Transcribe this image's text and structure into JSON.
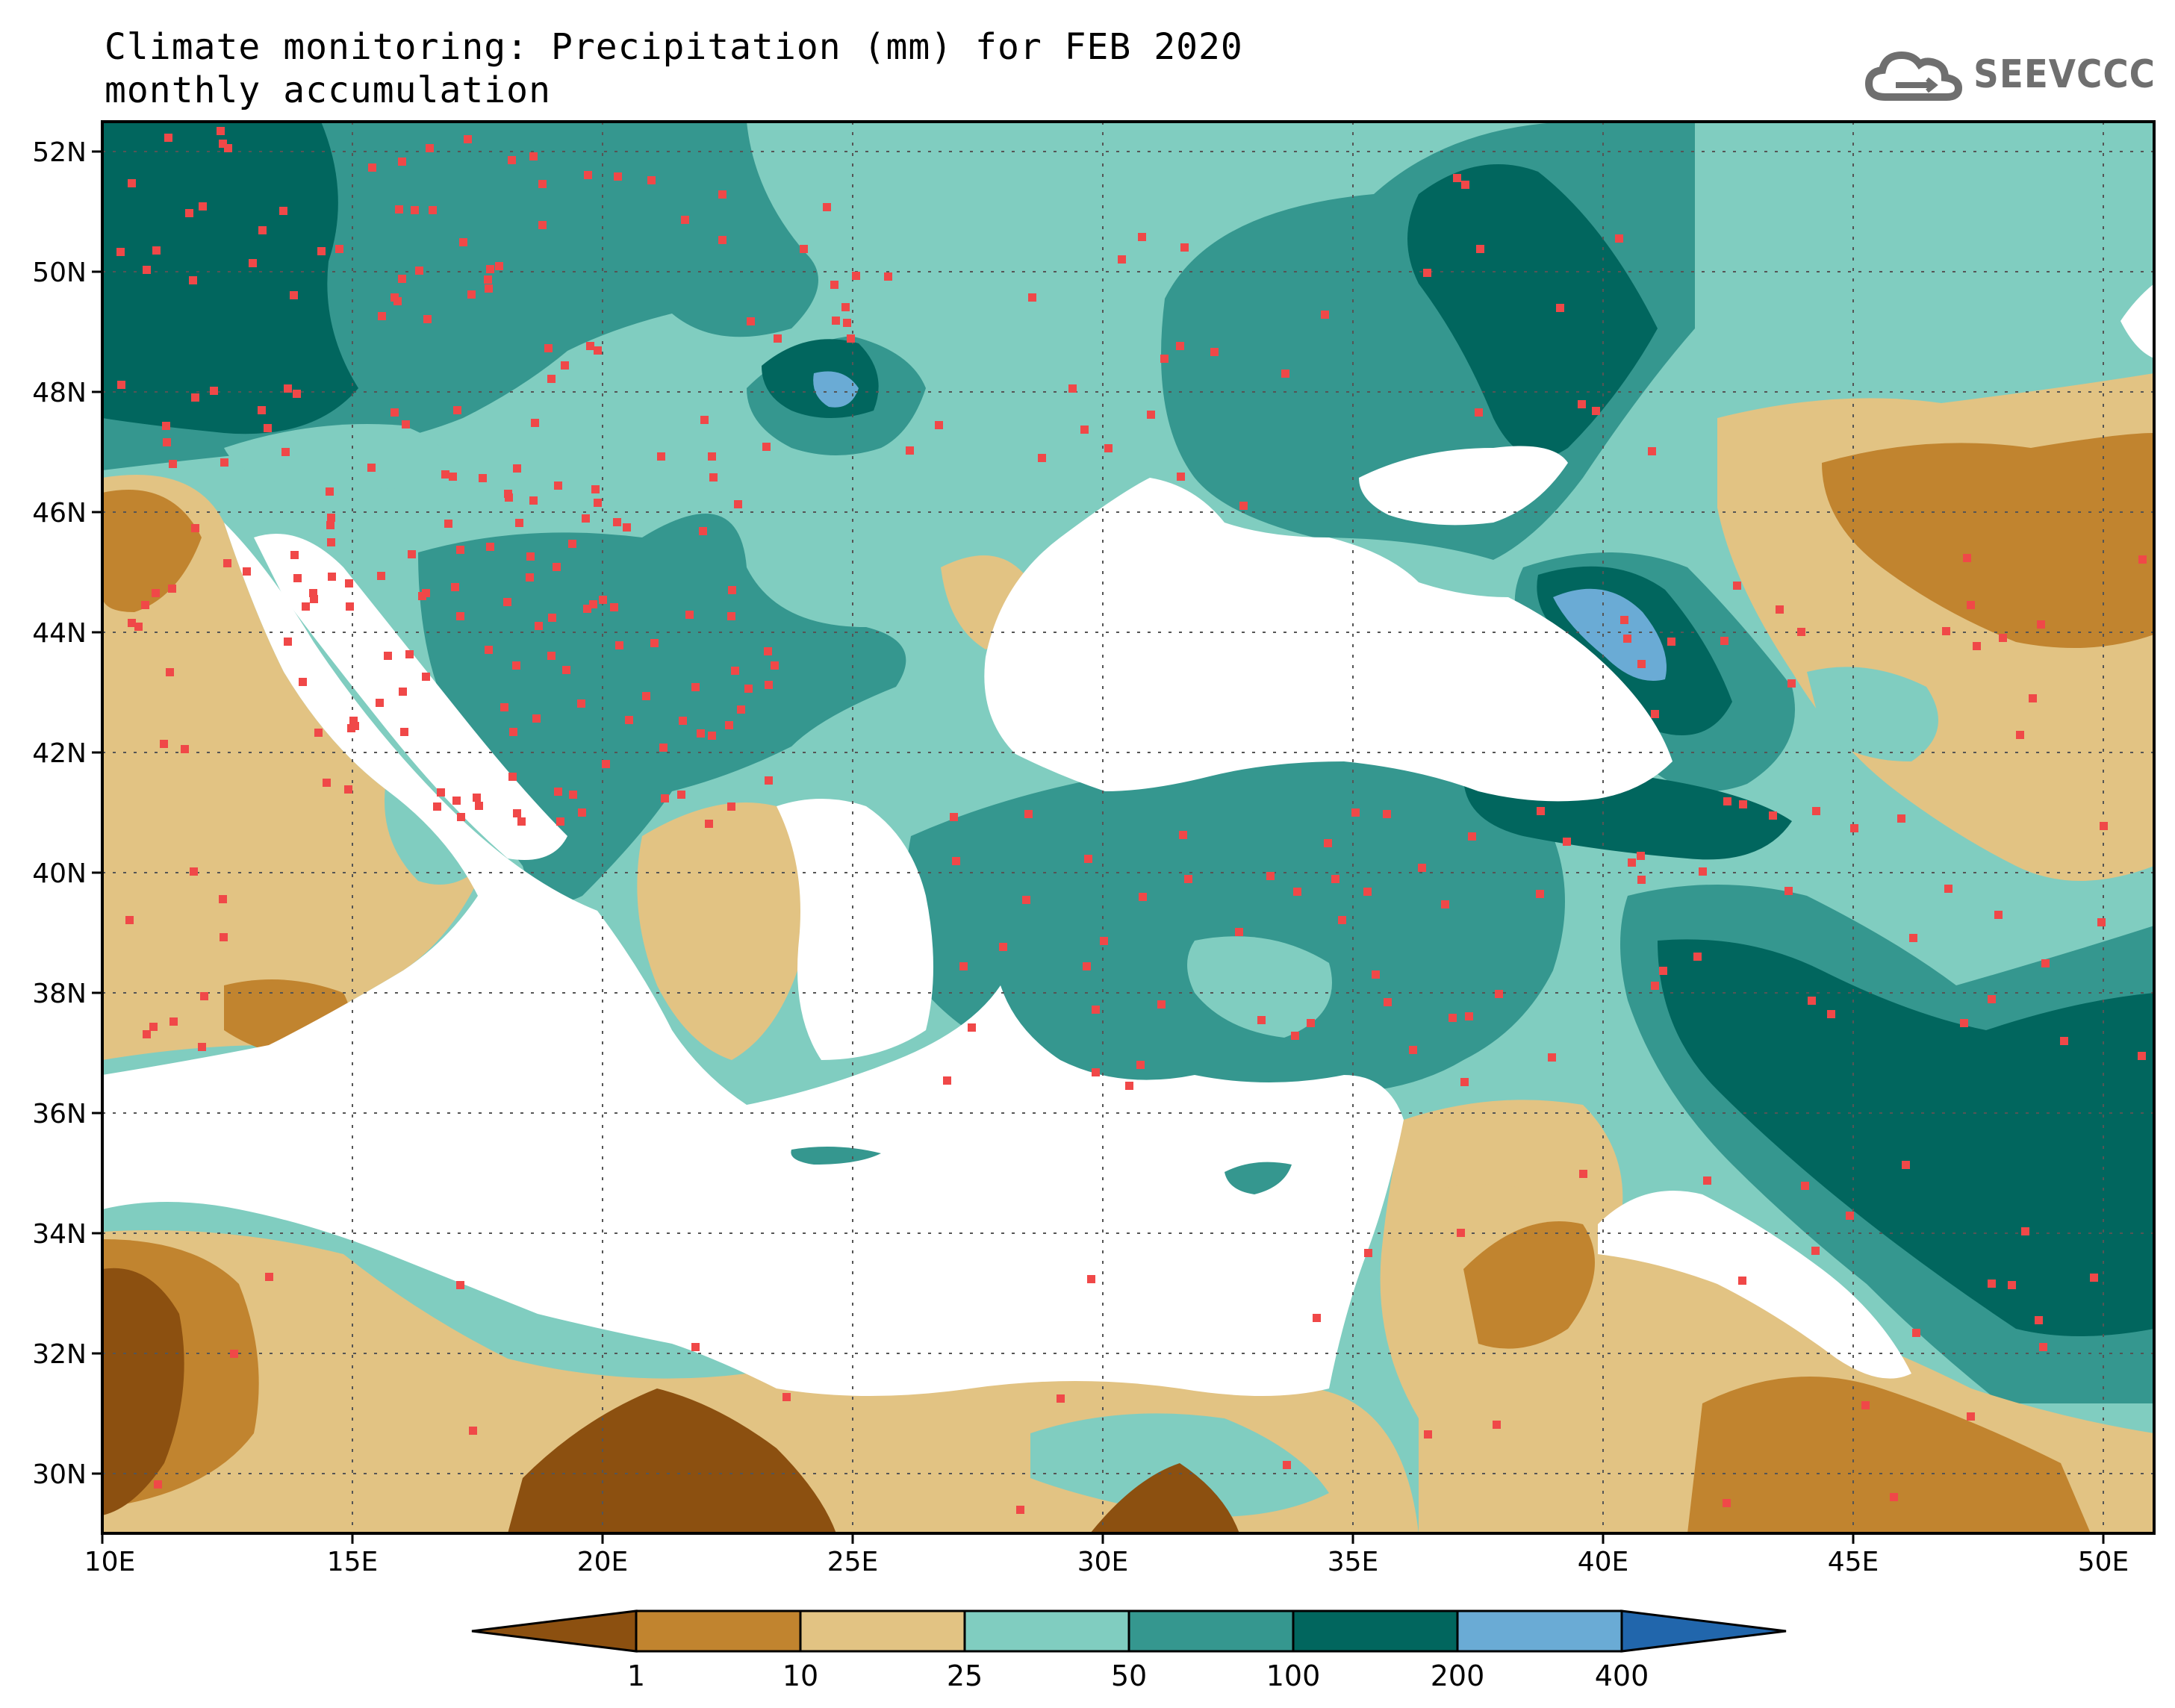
{
  "title": {
    "line1": "Climate monitoring: Precipitation (mm) for FEB 2020",
    "line2": "monthly accumulation"
  },
  "logo": {
    "text": "SEEVCCC",
    "icon": "cloud-icon"
  },
  "axes": {
    "lat_labels": [
      "52N",
      "50N",
      "48N",
      "46N",
      "44N",
      "42N",
      "40N",
      "38N",
      "36N",
      "34N",
      "32N",
      "30N"
    ],
    "lon_labels": [
      "10E",
      "15E",
      "20E",
      "25E",
      "30E",
      "35E",
      "40E",
      "45E",
      "50E"
    ]
  },
  "colorbar": {
    "labels": [
      "1",
      "10",
      "25",
      "50",
      "100",
      "200",
      "400"
    ],
    "colors": [
      "#8c5010",
      "#c1842f",
      "#e2c383",
      "#80cdc0",
      "#35978f",
      "#01665e",
      "#6aabd5",
      "#2166ac"
    ]
  },
  "chart_data": {
    "type": "heatmap",
    "variable": "Precipitation (mm)",
    "period": "FEB 2020",
    "xlim": [
      10,
      51
    ],
    "ylim": [
      29,
      52.5
    ],
    "levels": [
      1,
      10,
      25,
      50,
      100,
      200,
      400
    ],
    "level_colors": [
      "#8c5010",
      "#c1842f",
      "#e2c383",
      "#80cdc0",
      "#35978f",
      "#01665e",
      "#6aabd5",
      "#2166ac"
    ],
    "stations": "red square markers"
  }
}
